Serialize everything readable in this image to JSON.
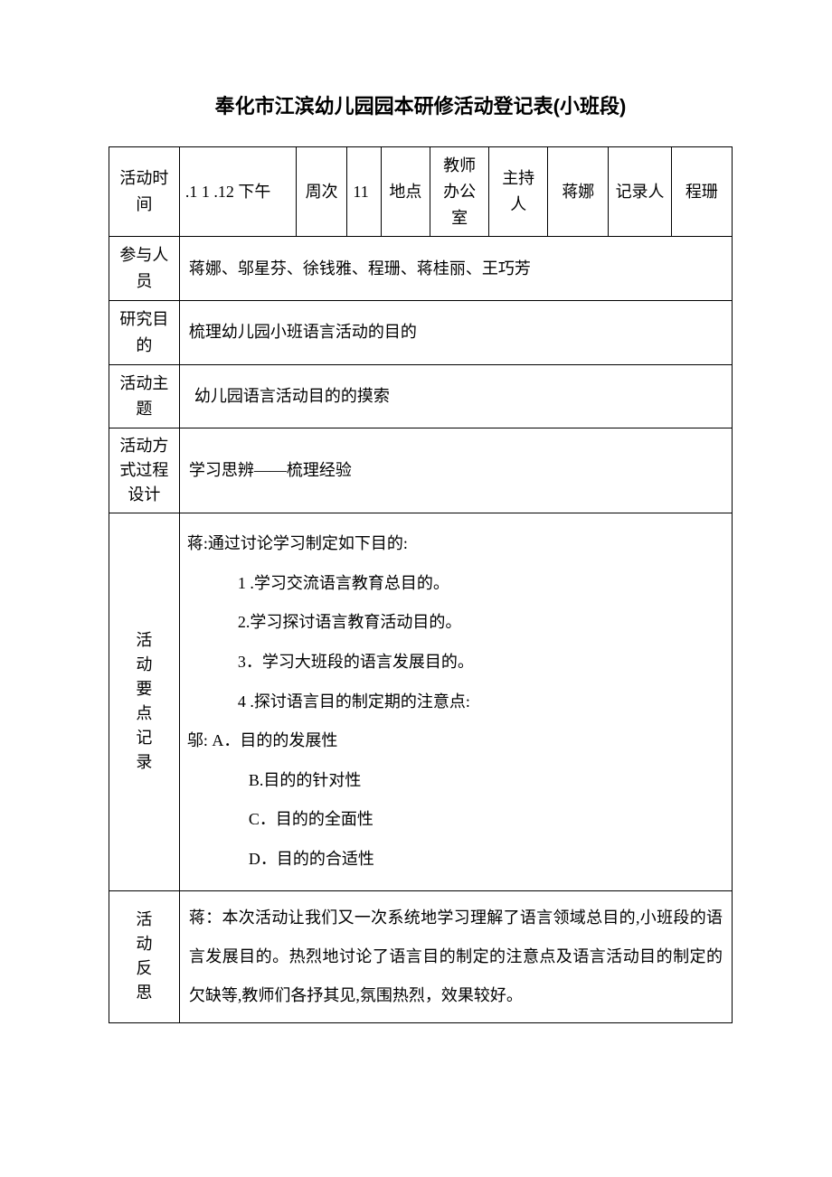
{
  "title": "奉化市江滨幼儿园园本研修活动登记表(小班段)",
  "row0": {
    "label_time": "活动时间",
    "time_value": ".1 1 .12 下午",
    "label_week": "周次",
    "week_value": "11",
    "label_place": "地点",
    "place_value": "教师办公室",
    "label_host": "主持人",
    "host_value": "蒋娜",
    "label_recorder": "记录人",
    "recorder_value": "程珊"
  },
  "row_participants": {
    "label": "参与人员",
    "value": "蒋娜、邬星芬、徐钱雅、程珊、蒋桂丽、王巧芳"
  },
  "row_purpose": {
    "label": "研究目的",
    "value": "梳理幼儿园小班语言活动的目的"
  },
  "row_theme": {
    "label": "活动主题",
    "value": " 幼儿园语言活动目的的摸索"
  },
  "row_method": {
    "label": "活动方式过程设计",
    "value": "学习思辨——梳理经验"
  },
  "row_record": {
    "label": "活动要点记录",
    "line1": "蒋:通过讨论学习制定如下目的:",
    "line2": "1 .学习交流语言教育总目的。",
    "line3": "2.学习探讨语言教育活动目的。",
    "line4": "3．学习大班段的语言发展目的。",
    "line5": "4 .探讨语言目的制定期的注意点:",
    "line6": "邬:   A．目的的发展性",
    "line7": "B.目的的针对性",
    "line8": "C．目的的全面性",
    "line9": "D．目的的合适性"
  },
  "row_reflection": {
    "label": "活动反思",
    "value": "蒋：本次活动让我们又一次系统地学习理解了语言领域总目的,小班段的语言发展目的。热烈地讨论了语言目的制定的注意点及语言活动目的制定的欠缺等,教师们各抒其见,氛围热烈，效果较好。"
  },
  "colors": {
    "background": "#ffffff",
    "border": "#000000",
    "text": "#000000"
  },
  "fonts": {
    "title_size": 22,
    "body_size": 18,
    "title_family": "SimHei",
    "body_family": "SimSun"
  }
}
